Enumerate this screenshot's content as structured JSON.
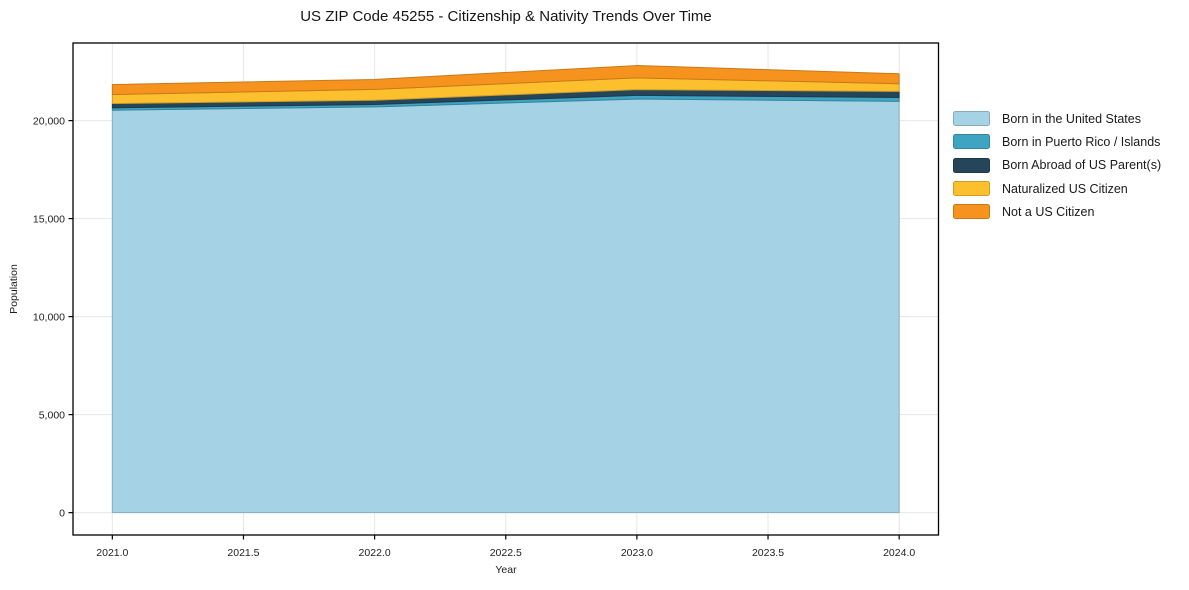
{
  "chart_data": {
    "type": "area",
    "stacked": true,
    "title": "US ZIP Code 45255 - Citizenship & Nativity Trends Over Time",
    "xlabel": "Year",
    "ylabel": "Population",
    "x": [
      2021,
      2022,
      2023,
      2024
    ],
    "series": [
      {
        "name": "Born in the United States",
        "color": "#a6d2e6",
        "values": [
          20530,
          20700,
          21100,
          20980
        ]
      },
      {
        "name": "Born in Puerto Rico / Islands",
        "color": "#3ea4c1",
        "values": [
          120,
          120,
          190,
          200
        ]
      },
      {
        "name": "Born Abroad of US Parent(s)",
        "color": "#24455a",
        "values": [
          220,
          220,
          290,
          310
        ]
      },
      {
        "name": "Naturalized US Citizen",
        "color": "#fcc02e",
        "values": [
          460,
          550,
          600,
          390
        ]
      },
      {
        "name": "Not a US Citizen",
        "color": "#f6931e",
        "values": [
          510,
          510,
          630,
          510
        ]
      }
    ],
    "xlim": [
      2020.85,
      2024.15
    ],
    "ylim": [
      -1141,
      23959
    ],
    "xticks": [
      {
        "value": 2021.0,
        "label": "2021.0"
      },
      {
        "value": 2021.5,
        "label": "2021.5"
      },
      {
        "value": 2022.0,
        "label": "2022.0"
      },
      {
        "value": 2022.5,
        "label": "2022.5"
      },
      {
        "value": 2023.0,
        "label": "2023.0"
      },
      {
        "value": 2023.5,
        "label": "2023.5"
      },
      {
        "value": 2024.0,
        "label": "2024.0"
      }
    ],
    "yticks": [
      {
        "value": 0,
        "label": "0"
      },
      {
        "value": 5000,
        "label": "5,000"
      },
      {
        "value": 10000,
        "label": "10,000"
      },
      {
        "value": 15000,
        "label": "15,000"
      },
      {
        "value": 20000,
        "label": "20,000"
      }
    ],
    "grid": true,
    "grid_color": "#e7e7e7",
    "spine_color": "#000000",
    "legend_position": "right-outside"
  }
}
